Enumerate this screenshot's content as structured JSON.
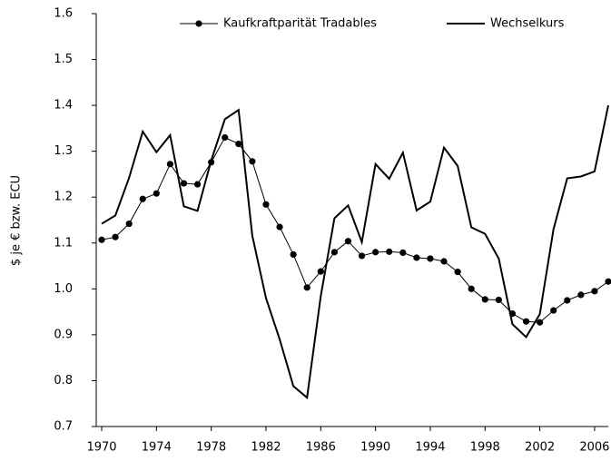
{
  "chart_data": {
    "type": "line",
    "y_label": "$ je € bzw. ECU",
    "x": [
      1970,
      1971,
      1972,
      1973,
      1974,
      1975,
      1976,
      1977,
      1978,
      1979,
      1980,
      1981,
      1982,
      1983,
      1984,
      1985,
      1986,
      1987,
      1988,
      1989,
      1990,
      1991,
      1992,
      1993,
      1994,
      1995,
      1996,
      1997,
      1998,
      1999,
      2000,
      2001,
      2002,
      2003,
      2004,
      2005,
      2006,
      2007
    ],
    "series": [
      {
        "name": "Kaufkraftparität Tradables",
        "color": "#000000",
        "marker": true,
        "values": [
          1.107,
          1.113,
          1.142,
          1.196,
          1.208,
          1.272,
          1.23,
          1.228,
          1.276,
          1.33,
          1.316,
          1.278,
          1.184,
          1.135,
          1.075,
          1.003,
          1.038,
          1.08,
          1.104,
          1.072,
          1.08,
          1.081,
          1.079,
          1.068,
          1.066,
          1.06,
          1.037,
          1.0,
          0.977,
          0.976,
          0.946,
          0.929,
          0.927,
          0.953,
          0.975,
          0.987,
          0.995,
          1.016
        ]
      },
      {
        "name": "Wechselkurs",
        "color": "#000000",
        "marker": false,
        "values": [
          1.142,
          1.16,
          1.242,
          1.343,
          1.298,
          1.335,
          1.18,
          1.17,
          1.28,
          1.37,
          1.39,
          1.116,
          0.98,
          0.89,
          0.788,
          0.763,
          0.984,
          1.154,
          1.182,
          1.102,
          1.272,
          1.24,
          1.297,
          1.171,
          1.19,
          1.308,
          1.268,
          1.134,
          1.12,
          1.066,
          0.923,
          0.895,
          0.945,
          1.13,
          1.241,
          1.245,
          1.256,
          1.4
        ]
      }
    ],
    "xlim": [
      1970,
      2007
    ],
    "xticks": [
      1970,
      1974,
      1978,
      1982,
      1986,
      1990,
      1994,
      1998,
      2002,
      2006
    ],
    "ylim": [
      0.7,
      1.6
    ],
    "yticks": [
      0.7,
      0.8,
      0.9,
      {
        "value": 1,
        "label": "1.0"
      },
      1.1,
      1.2,
      1.3,
      1.4,
      1.5,
      1.6
    ],
    "grid": false,
    "legend": "top"
  }
}
